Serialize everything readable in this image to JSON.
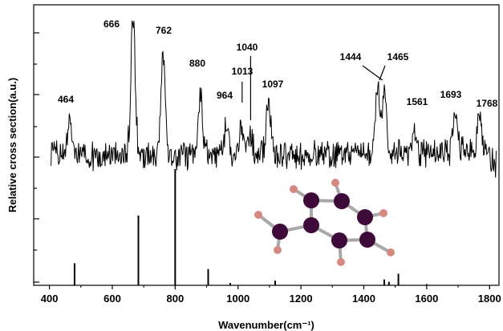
{
  "chart_data": {
    "type": "line",
    "title": "",
    "xlabel": "Wavenumber(cm⁻¹)",
    "ylabel": "Relative cross section(a.u.)",
    "xlim": [
      350,
      1830
    ],
    "xticks": [
      400,
      600,
      800,
      1000,
      1200,
      1400,
      1600,
      1800
    ],
    "experimental_peaks": [
      {
        "x": 464,
        "label": "464",
        "height": 0.45
      },
      {
        "x": 666,
        "label": "666",
        "height": 1.95
      },
      {
        "x": 762,
        "label": "762",
        "height": 1.4
      },
      {
        "x": 880,
        "label": "880",
        "height": 0.85
      },
      {
        "x": 964,
        "label": "964",
        "height": 0.5
      },
      {
        "x": 1013,
        "label": "1013",
        "height": 0.4
      },
      {
        "x": 1040,
        "label": "1040",
        "height": 0.3
      },
      {
        "x": 1097,
        "label": "1097",
        "height": 0.75
      },
      {
        "x": 1444,
        "label": "1444",
        "height": 0.9
      },
      {
        "x": 1465,
        "label": "1465",
        "height": 0.85
      },
      {
        "x": 1561,
        "label": "1561",
        "height": 0.35
      },
      {
        "x": 1693,
        "label": "1693",
        "height": 0.6
      },
      {
        "x": 1768,
        "label": "1768",
        "height": 0.5
      }
    ],
    "calculated_sticks": [
      {
        "x": 480,
        "height": 0.19
      },
      {
        "x": 683,
        "height": 0.6
      },
      {
        "x": 800,
        "height": 1.0
      },
      {
        "x": 905,
        "height": 0.14
      },
      {
        "x": 975,
        "height": 0.02
      },
      {
        "x": 1118,
        "height": 0.04
      },
      {
        "x": 1465,
        "height": 0.05
      },
      {
        "x": 1480,
        "height": 0.03
      },
      {
        "x": 1510,
        "height": 0.1
      },
      {
        "x": 1600,
        "height": 0.01
      }
    ],
    "molecule": {
      "ring_atom_color": "#3d0a3a",
      "h_atom_color": "#d48a7e",
      "bond_color": "#a8a8a8"
    }
  }
}
